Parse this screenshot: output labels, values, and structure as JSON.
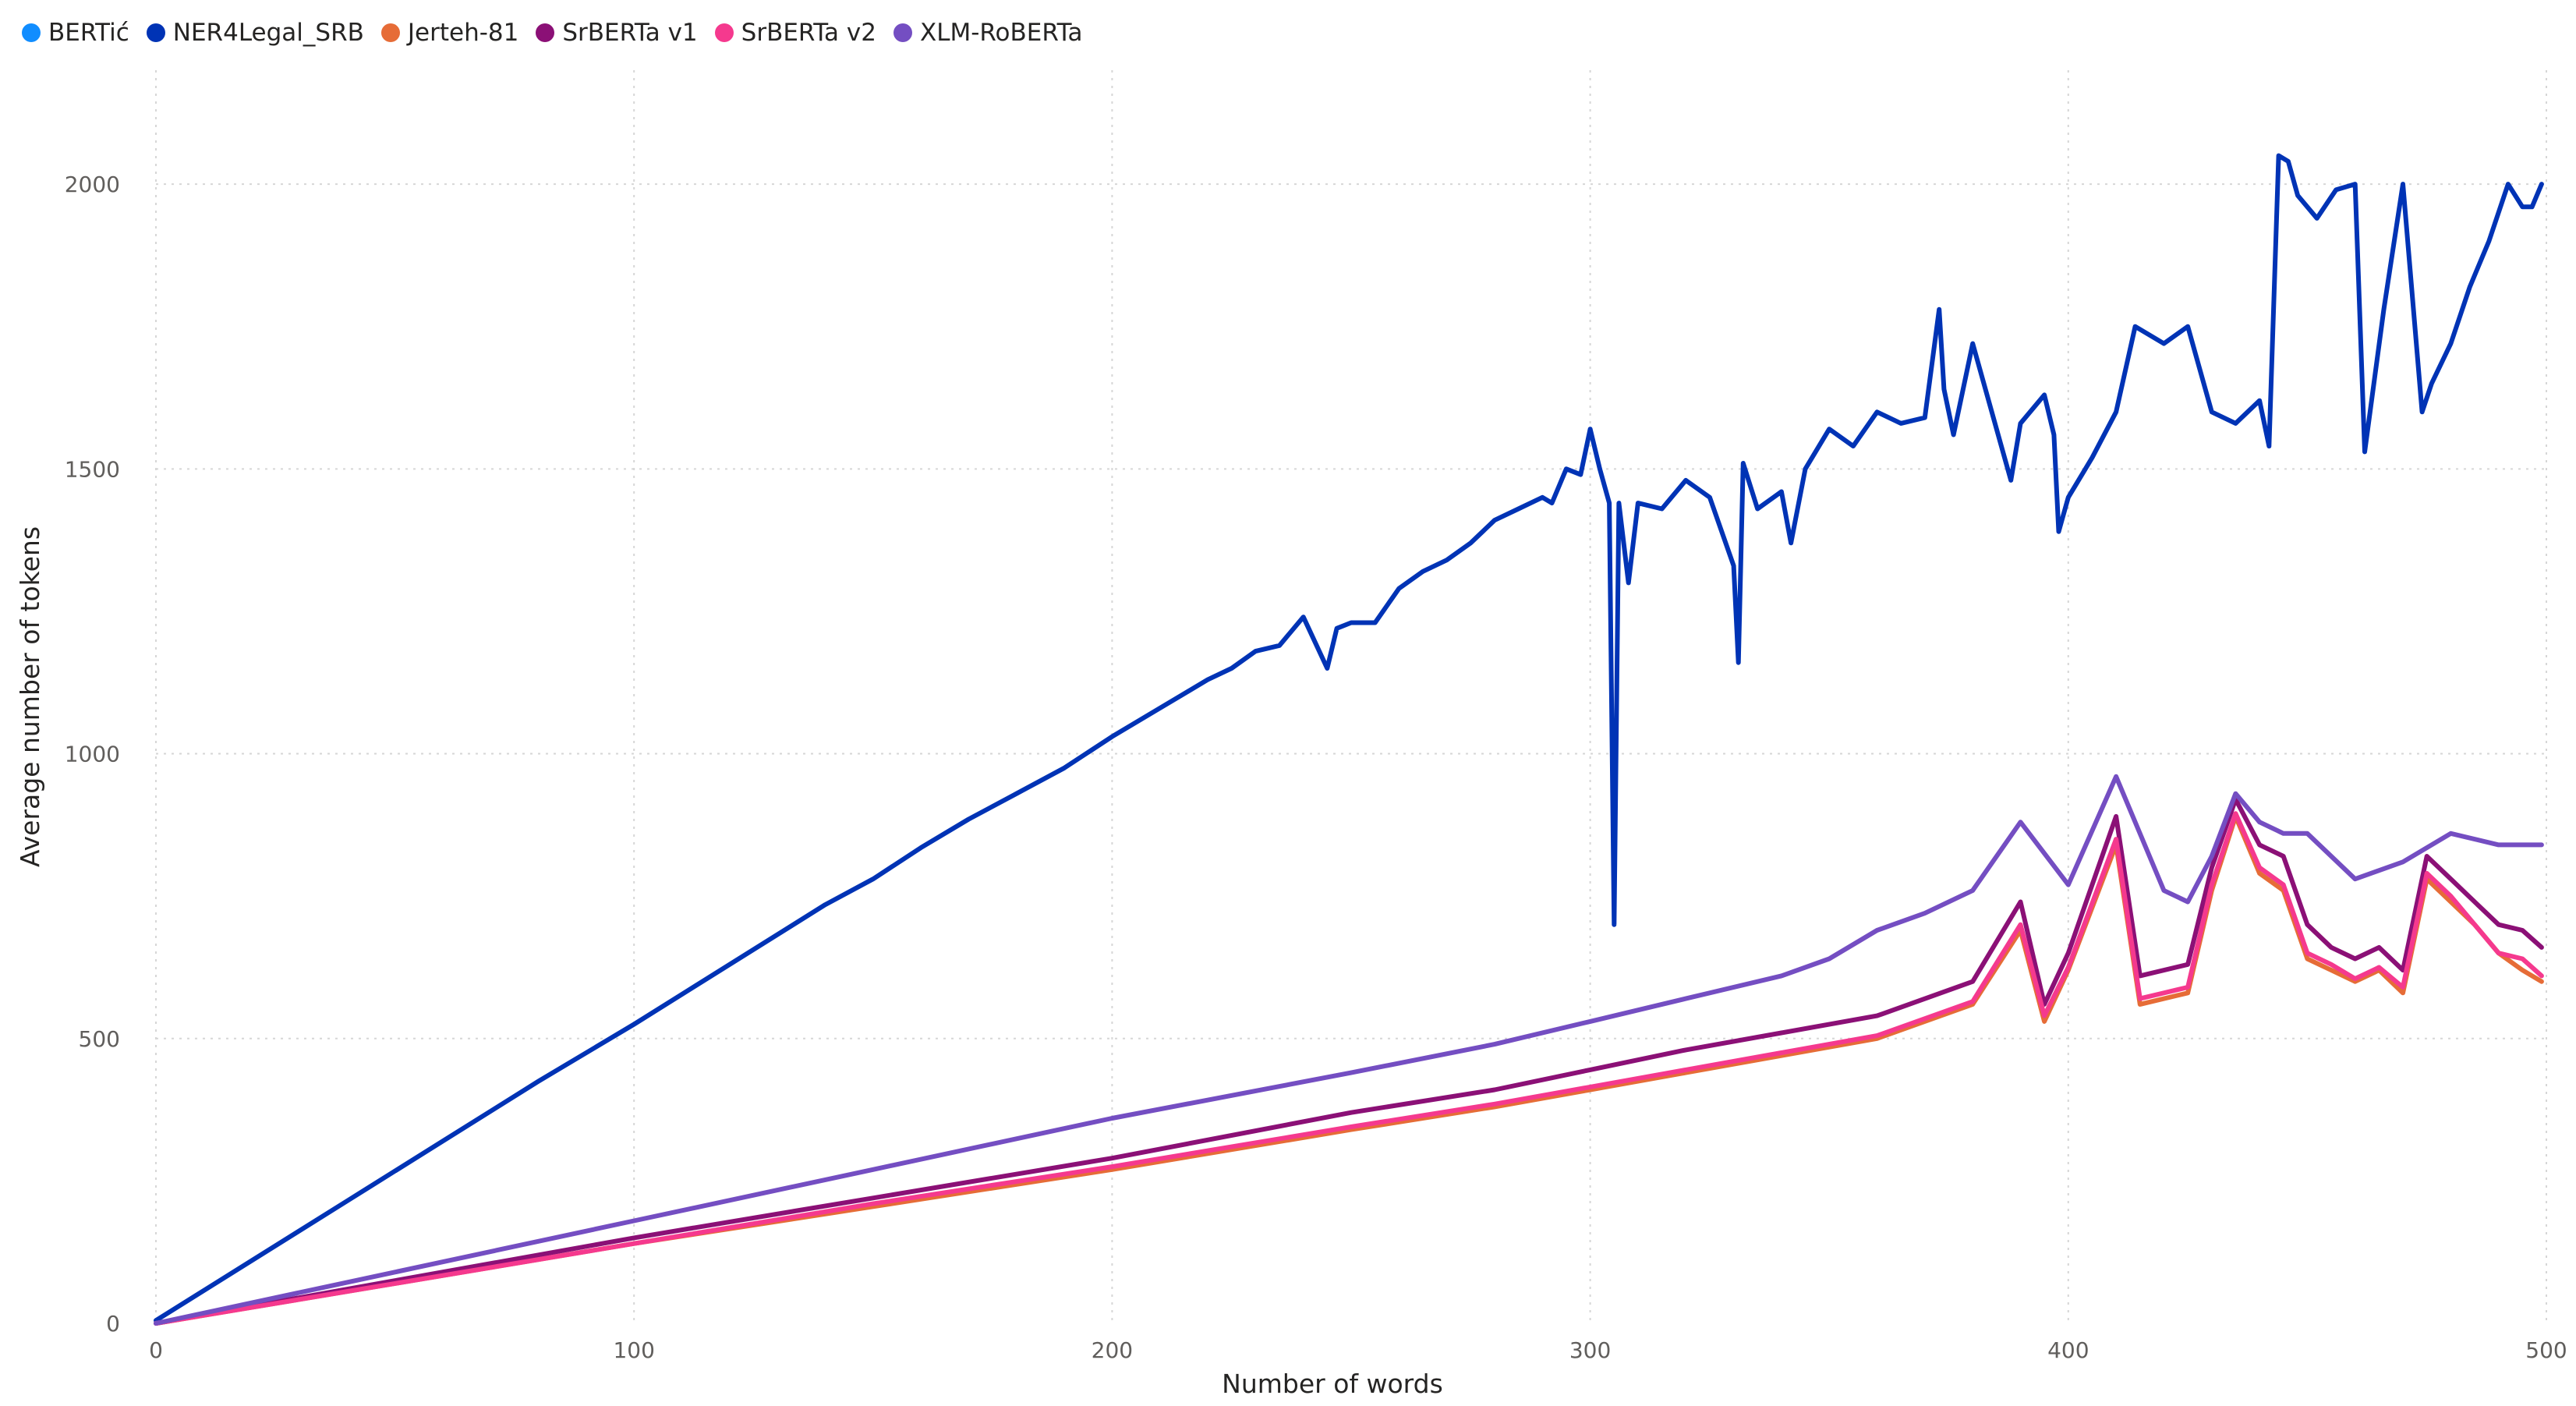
{
  "chart_data": {
    "type": "line",
    "title": "",
    "xlabel": "Number of words",
    "ylabel": "Average number of tokens",
    "xlim": [
      0,
      500
    ],
    "ylim": [
      0,
      2200
    ],
    "xticks": [
      0,
      100,
      200,
      300,
      400,
      500
    ],
    "yticks": [
      0,
      500,
      1000,
      1500,
      2000
    ],
    "xtick_labels": [
      "0",
      "100",
      "200",
      "300",
      "400",
      "500"
    ],
    "ytick_labels": [
      "0",
      "500",
      "1000",
      "1500",
      "2000"
    ],
    "grid": true,
    "legend_position": "top-left",
    "series": [
      {
        "name": "BERTić",
        "color": "#118DFF",
        "x": [],
        "y": []
      },
      {
        "name": "NER4Legal_SRB",
        "color": "#0033B5",
        "x": [
          0,
          20,
          40,
          60,
          80,
          100,
          120,
          140,
          150,
          160,
          170,
          180,
          190,
          200,
          210,
          220,
          225,
          230,
          235,
          240,
          245,
          247,
          250,
          255,
          260,
          265,
          270,
          275,
          280,
          285,
          290,
          292,
          295,
          298,
          300,
          302,
          304,
          305,
          306,
          308,
          310,
          315,
          320,
          325,
          330,
          331,
          332,
          335,
          340,
          342,
          345,
          350,
          355,
          360,
          365,
          370,
          373,
          374,
          376,
          380,
          385,
          388,
          390,
          395,
          397,
          398,
          400,
          405,
          410,
          414,
          420,
          425,
          430,
          435,
          440,
          442,
          444,
          446,
          448,
          452,
          456,
          460,
          462,
          466,
          470,
          474,
          476,
          480,
          484,
          488,
          492,
          495,
          497,
          499
        ],
        "y": [
          5,
          110,
          215,
          320,
          425,
          525,
          630,
          735,
          780,
          835,
          885,
          930,
          975,
          1030,
          1080,
          1130,
          1150,
          1180,
          1190,
          1240,
          1150,
          1220,
          1230,
          1230,
          1290,
          1320,
          1340,
          1370,
          1410,
          1430,
          1450,
          1440,
          1500,
          1490,
          1570,
          1500,
          1440,
          700,
          1440,
          1300,
          1440,
          1430,
          1480,
          1450,
          1330,
          1160,
          1510,
          1430,
          1460,
          1370,
          1500,
          1570,
          1540,
          1600,
          1580,
          1590,
          1780,
          1640,
          1560,
          1720,
          1570,
          1480,
          1580,
          1630,
          1560,
          1390,
          1450,
          1520,
          1600,
          1750,
          1720,
          1750,
          1600,
          1580,
          1620,
          1540,
          2050,
          2040,
          1980,
          1940,
          1990,
          2000,
          1530,
          1780,
          2000,
          1600,
          1650,
          1720,
          1820,
          1900,
          2000,
          1960,
          1960,
          2000
        ]
      },
      {
        "name": "Jerteh-81",
        "color": "#E66C37",
        "x": [
          0,
          50,
          100,
          150,
          200,
          250,
          280,
          300,
          320,
          340,
          360,
          380,
          390,
          395,
          400,
          410,
          415,
          425,
          430,
          435,
          440,
          445,
          450,
          455,
          460,
          465,
          470,
          475,
          480,
          485,
          490,
          495,
          499
        ],
        "y": [
          0,
          70,
          140,
          205,
          270,
          340,
          380,
          410,
          440,
          470,
          500,
          560,
          690,
          530,
          620,
          840,
          560,
          580,
          760,
          890,
          790,
          760,
          640,
          620,
          600,
          620,
          580,
          780,
          740,
          700,
          650,
          620,
          600
        ]
      },
      {
        "name": "SrBERTa v1",
        "color": "#8B1076",
        "x": [
          0,
          50,
          100,
          150,
          200,
          250,
          280,
          300,
          320,
          340,
          360,
          380,
          390,
          395,
          400,
          410,
          415,
          425,
          430,
          435,
          440,
          445,
          450,
          455,
          460,
          465,
          470,
          475,
          480,
          485,
          490,
          495,
          499
        ],
        "y": [
          0,
          75,
          150,
          220,
          290,
          370,
          410,
          445,
          480,
          510,
          540,
          600,
          740,
          560,
          650,
          890,
          610,
          630,
          800,
          920,
          840,
          820,
          700,
          660,
          640,
          660,
          620,
          820,
          780,
          740,
          700,
          690,
          660
        ]
      },
      {
        "name": "SrBERTa v2",
        "color": "#F5398E",
        "x": [
          0,
          50,
          100,
          150,
          200,
          250,
          280,
          300,
          320,
          340,
          360,
          380,
          390,
          395,
          400,
          410,
          415,
          425,
          430,
          435,
          440,
          445,
          450,
          455,
          460,
          465,
          470,
          475,
          480,
          485,
          490,
          495,
          499
        ],
        "y": [
          0,
          70,
          140,
          210,
          275,
          345,
          385,
          415,
          445,
          475,
          505,
          565,
          700,
          540,
          625,
          850,
          570,
          590,
          770,
          895,
          800,
          770,
          650,
          630,
          605,
          625,
          590,
          790,
          750,
          700,
          650,
          640,
          610
        ]
      },
      {
        "name": "XLM-RoBERTa",
        "color": "#744EC2",
        "x": [
          0,
          50,
          100,
          150,
          200,
          250,
          280,
          300,
          320,
          340,
          350,
          360,
          370,
          380,
          390,
          400,
          410,
          420,
          425,
          430,
          435,
          440,
          445,
          450,
          460,
          470,
          480,
          490,
          495,
          499
        ],
        "y": [
          0,
          90,
          180,
          270,
          360,
          440,
          490,
          530,
          570,
          610,
          640,
          690,
          720,
          760,
          880,
          770,
          960,
          760,
          740,
          820,
          930,
          880,
          860,
          860,
          780,
          810,
          860,
          840,
          840,
          840
        ]
      }
    ]
  }
}
